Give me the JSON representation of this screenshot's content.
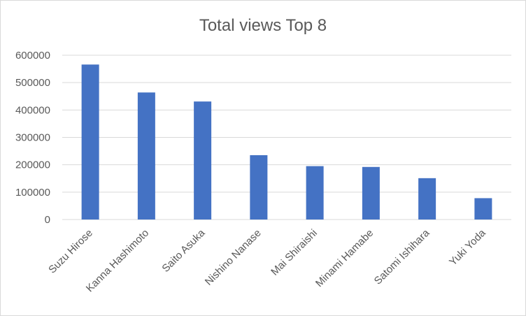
{
  "chart_data": {
    "type": "bar",
    "title": "Total views Top 8",
    "xlabel": "",
    "ylabel": "",
    "categories": [
      "Suzu Hirose",
      "Kanna Hashimoto",
      "Saito Asuka",
      "Nishino Nanase",
      "Mai Shiraishi",
      "Minami Hamabe",
      "Satomi Ishihara",
      "Yuki Yoda"
    ],
    "values": [
      566000,
      464000,
      431000,
      235000,
      195000,
      192000,
      151000,
      78000
    ],
    "ylim": [
      0,
      600000
    ],
    "yticks": [
      0,
      100000,
      200000,
      300000,
      400000,
      500000,
      600000
    ],
    "ytick_labels": [
      "0",
      "100000",
      "200000",
      "300000",
      "400000",
      "500000",
      "600000"
    ],
    "grid": true,
    "legend": "none",
    "colors": {
      "bar": "#4472c4",
      "grid": "#d9d9d9",
      "text": "#595959",
      "frame": "#d9d9d9"
    }
  }
}
